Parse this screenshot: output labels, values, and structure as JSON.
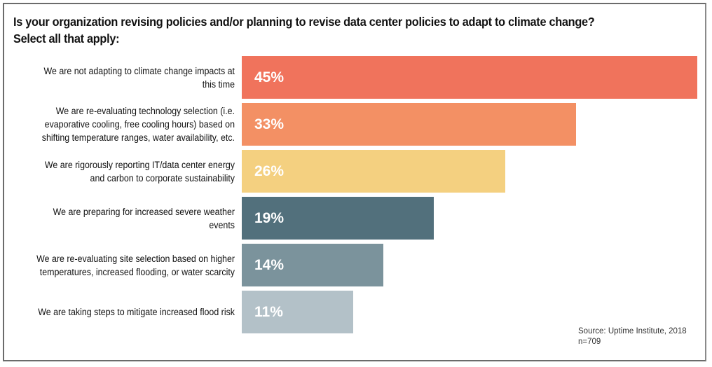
{
  "chart_data": {
    "type": "bar",
    "orientation": "horizontal",
    "title": "Is your organization revising policies and/or planning to revise data center policies to adapt to climate change?",
    "subtitle": "Select all that apply:",
    "categories": [
      "We are not adapting to climate change impacts at this time",
      "We are re-evaluating technology selection (i.e. evaporative cooling, free cooling hours) based on shifting temperature ranges, water availability, etc.",
      "We are rigorously reporting IT/data center energy and carbon to corporate sustainability",
      "We are preparing for increased severe weather events",
      "We are re-evaluating site selection based on higher temperatures, increased flooding, or water scarcity",
      "We are taking steps to mitigate increased flood risk"
    ],
    "values": [
      45,
      33,
      26,
      19,
      14,
      11
    ],
    "value_labels": [
      "45%",
      "33%",
      "26%",
      "19%",
      "14%",
      "11%"
    ],
    "colors": [
      "#f0735c",
      "#f39064",
      "#f4d080",
      "#52707c",
      "#7b939c",
      "#b3c1c8"
    ],
    "xlim": [
      0,
      45
    ],
    "grid": false,
    "source": "Source: Uptime Institute, 2018",
    "n": "n=709"
  }
}
